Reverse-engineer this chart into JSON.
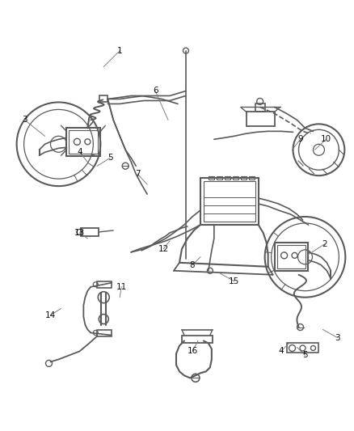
{
  "bg_color": "#ffffff",
  "lc": "#5a5a5a",
  "figsize": [
    4.38,
    5.33
  ],
  "dpi": 100,
  "callouts": [
    [
      "1",
      148,
      62,
      128,
      82
    ],
    [
      "2",
      402,
      302,
      382,
      315
    ],
    [
      "3",
      30,
      148,
      55,
      168
    ],
    [
      "3",
      418,
      418,
      400,
      408
    ],
    [
      "4",
      98,
      188,
      108,
      200
    ],
    [
      "4",
      348,
      435,
      358,
      425
    ],
    [
      "5",
      136,
      195,
      120,
      205
    ],
    [
      "5",
      378,
      440,
      368,
      430
    ],
    [
      "6",
      192,
      112,
      208,
      148
    ],
    [
      "7",
      170,
      215,
      182,
      228
    ],
    [
      "8",
      238,
      328,
      248,
      318
    ],
    [
      "9",
      372,
      172,
      362,
      185
    ],
    [
      "10",
      404,
      172,
      390,
      185
    ],
    [
      "11",
      150,
      355,
      148,
      368
    ],
    [
      "12",
      202,
      308,
      210,
      298
    ],
    [
      "13",
      98,
      288,
      108,
      295
    ],
    [
      "14",
      62,
      390,
      75,
      382
    ],
    [
      "15",
      290,
      348,
      272,
      338
    ],
    [
      "16",
      238,
      435,
      245,
      422
    ]
  ]
}
